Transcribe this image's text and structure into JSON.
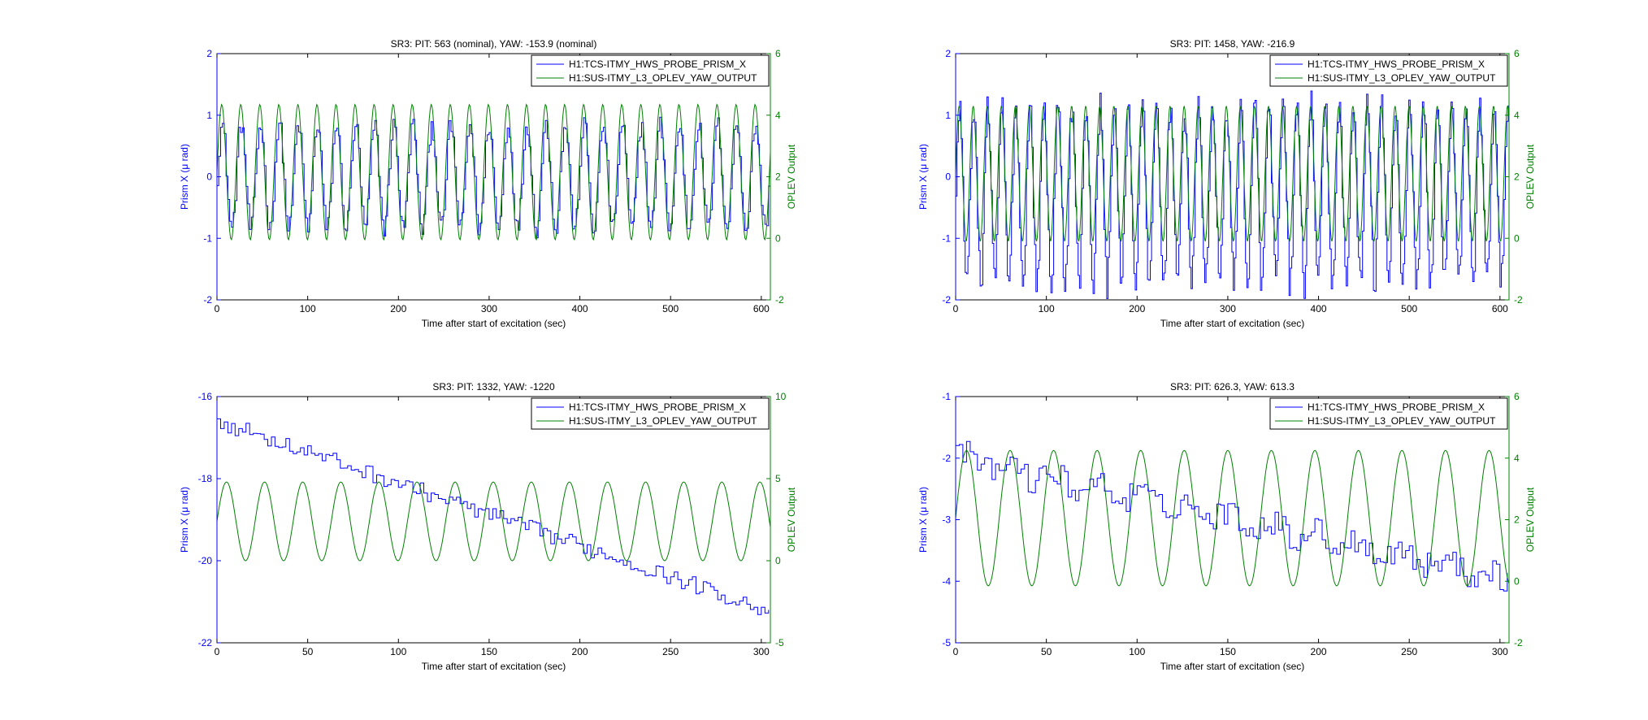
{
  "colors": {
    "prism": "#0000ff",
    "oplev": "#008000",
    "axes": "#000000",
    "background": "#ffffff"
  },
  "chart_data": [
    {
      "type": "line",
      "title": "SR3: PIT: 563 (nominal), YAW: -153.9 (nominal)",
      "xlabel": "Time after start of excitation (sec)",
      "ylabel_left": "Prism X (μ rad)",
      "ylabel_right": "OPLEV Output",
      "xlim": [
        0,
        610
      ],
      "ylim_left": [
        -2,
        2
      ],
      "ylim_right": [
        -2,
        6
      ],
      "xticks": [
        0,
        100,
        200,
        300,
        400,
        500,
        600
      ],
      "yticks_left": [
        -2,
        -1,
        0,
        1,
        2
      ],
      "yticks_right": [
        -2,
        0,
        2,
        4,
        6
      ],
      "legend_location": "top-right",
      "grid": false,
      "series": [
        {
          "name": "H1:TCS-ITMY_HWS_PROBE_PRISM_X",
          "axis": "left",
          "style": "step",
          "amplitude": 0.85,
          "noise": 0.15,
          "offset": 0.0,
          "drift": 0.0,
          "period": 21.0,
          "dt": 2.0
        },
        {
          "name": "H1:SUS-ITMY_L3_OPLEV_YAW_OUTPUT",
          "axis": "right",
          "style": "line",
          "amplitude": 2.2,
          "offset": 2.15,
          "period": 21.0,
          "dt": 1.0
        }
      ]
    },
    {
      "type": "line",
      "title": "SR3: PIT: 1458, YAW: -216.9",
      "xlabel": "Time after start of excitation (sec)",
      "ylabel_left": "Prism X (μ rad)",
      "ylabel_right": "OPLEV Output",
      "xlim": [
        0,
        610
      ],
      "ylim_left": [
        -2,
        2
      ],
      "ylim_right": [
        -2,
        6
      ],
      "xticks": [
        0,
        100,
        200,
        300,
        400,
        500,
        600
      ],
      "yticks_left": [
        -2,
        -1,
        0,
        1,
        2
      ],
      "yticks_right": [
        -2,
        0,
        2,
        4,
        6
      ],
      "legend_location": "top-right",
      "grid": false,
      "series": [
        {
          "name": "H1:TCS-ITMY_HWS_PROBE_PRISM_X",
          "axis": "left",
          "style": "step",
          "amplitude": 1.45,
          "noise": 0.25,
          "offset": -0.3,
          "drift": 0.0,
          "period": 15.5,
          "dt": 1.5
        },
        {
          "name": "H1:SUS-ITMY_L3_OPLEV_YAW_OUTPUT",
          "axis": "right",
          "style": "line",
          "amplitude": 2.2,
          "offset": 2.1,
          "period": 15.5,
          "dt": 0.75
        }
      ]
    },
    {
      "type": "line",
      "title": "SR3: PIT: 1332, YAW: -1220",
      "xlabel": "Time after start of excitation (sec)",
      "ylabel_left": "Prism X (μ rad)",
      "ylabel_right": "OPLEV Output",
      "xlim": [
        0,
        305
      ],
      "ylim_left": [
        -22,
        -16
      ],
      "ylim_right": [
        -5,
        10
      ],
      "xticks": [
        0,
        50,
        100,
        150,
        200,
        250,
        300
      ],
      "yticks_left": [
        -22,
        -20,
        -18,
        -16
      ],
      "yticks_right": [
        -5,
        0,
        5,
        10
      ],
      "legend_location": "top-right",
      "grid": false,
      "series": [
        {
          "name": "H1:TCS-ITMY_HWS_PROBE_PRISM_X",
          "axis": "left",
          "style": "step",
          "amplitude": 0.0,
          "noise": 0.2,
          "offset": -16.6,
          "drift": -0.0152,
          "period": 21.0,
          "dt": 2.0
        },
        {
          "name": "H1:SUS-ITMY_L3_OPLEV_YAW_OUTPUT",
          "axis": "right",
          "style": "line",
          "amplitude": 2.4,
          "offset": 2.4,
          "period": 21.0,
          "dt": 0.5
        }
      ]
    },
    {
      "type": "line",
      "title": "SR3: PIT: 626.3, YAW: 613.3",
      "xlabel": "Time after start of excitation (sec)",
      "ylabel_left": "Prism X (μ rad)",
      "ylabel_right": "OPLEV Output",
      "xlim": [
        0,
        305
      ],
      "ylim_left": [
        -5,
        -1
      ],
      "ylim_right": [
        -2,
        6
      ],
      "xticks": [
        0,
        50,
        100,
        150,
        200,
        250,
        300
      ],
      "yticks_left": [
        -5,
        -4,
        -3,
        -2,
        -1
      ],
      "yticks_right": [
        -2,
        0,
        2,
        4,
        6
      ],
      "legend_location": "top-right",
      "grid": false,
      "series": [
        {
          "name": "H1:TCS-ITMY_HWS_PROBE_PRISM_X",
          "axis": "left",
          "style": "step",
          "amplitude": 0.1,
          "noise": 0.22,
          "offset": -2.0,
          "drift": -0.0064,
          "period": 24.0,
          "dt": 2.0
        },
        {
          "name": "H1:SUS-ITMY_L3_OPLEV_YAW_OUTPUT",
          "axis": "right",
          "style": "line",
          "amplitude": 2.2,
          "offset": 2.05,
          "period": 24.0,
          "dt": 0.5
        }
      ]
    }
  ]
}
